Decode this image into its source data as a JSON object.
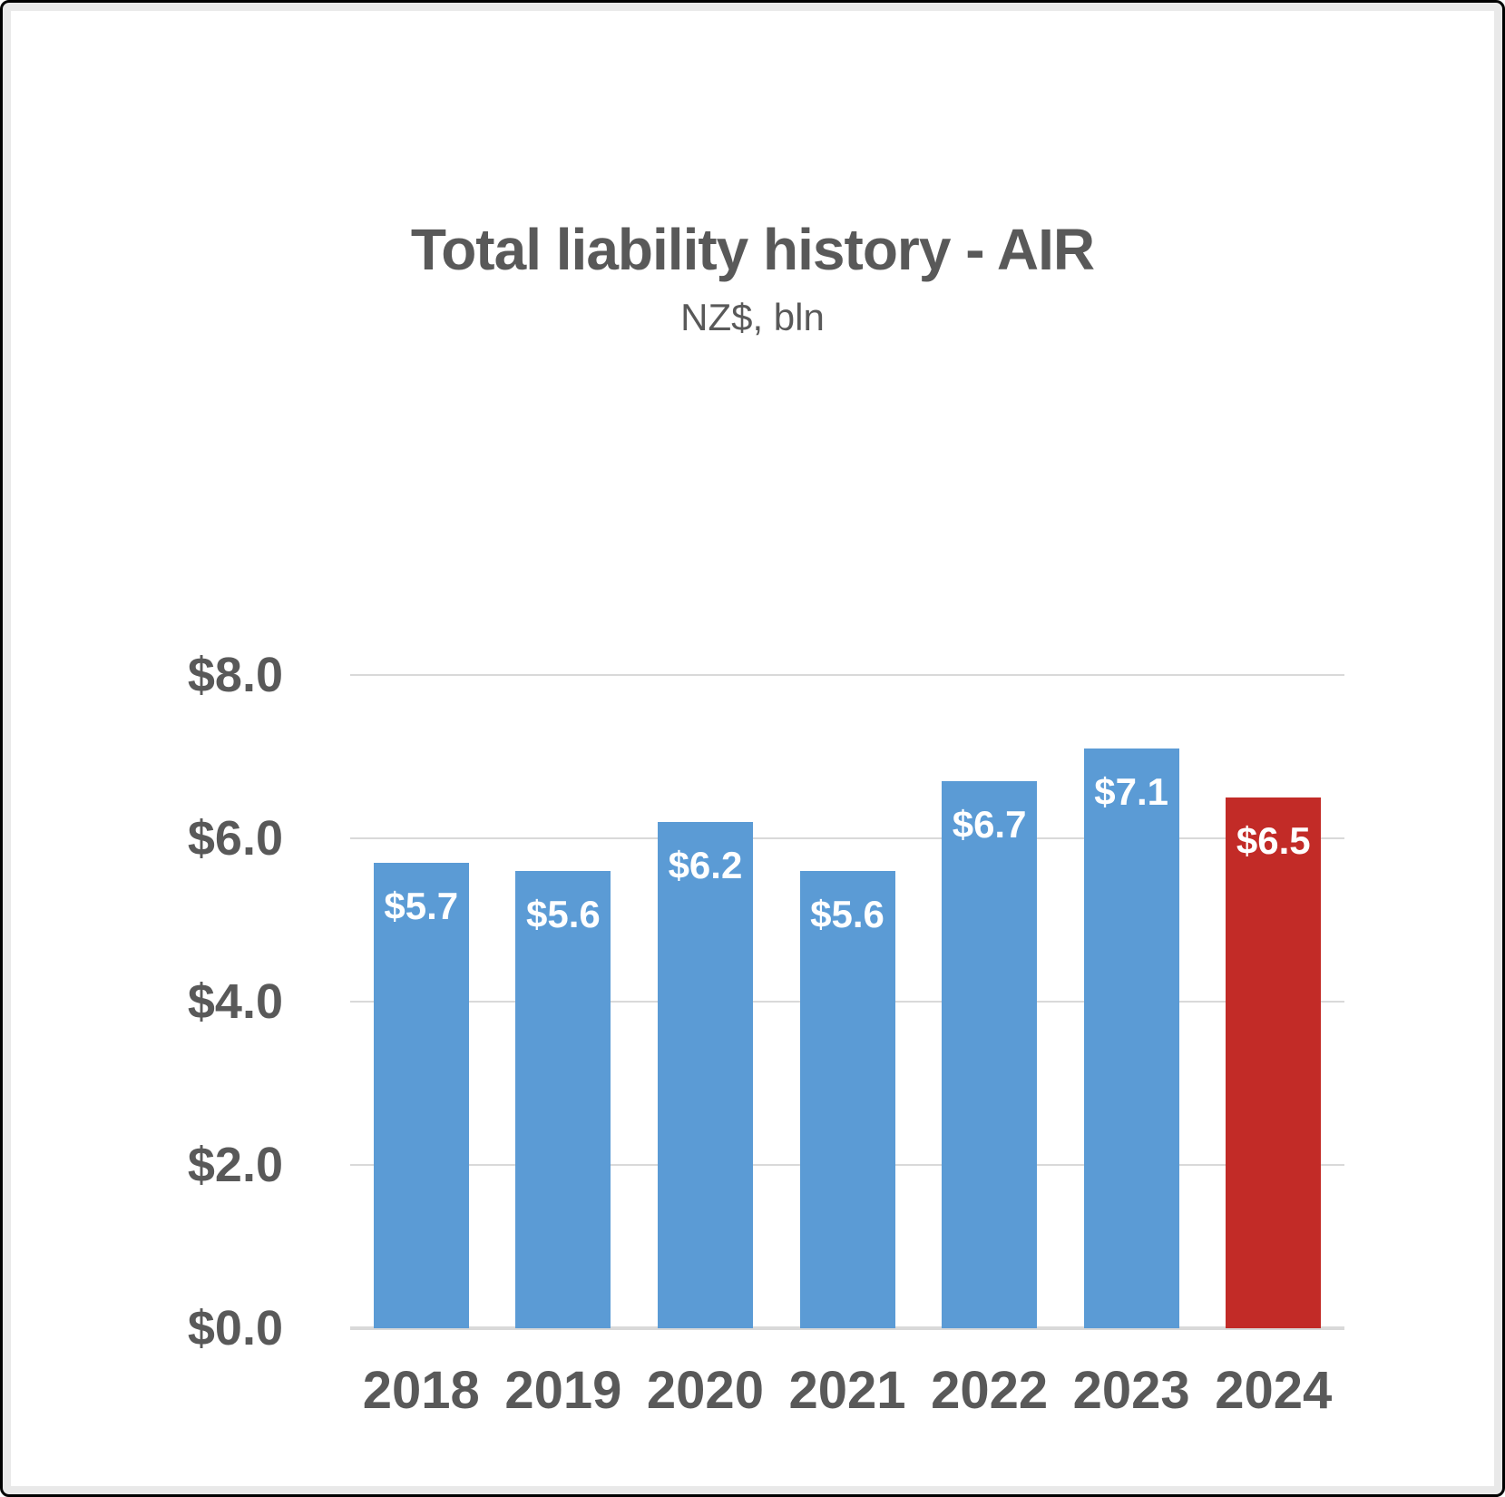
{
  "chart_data": {
    "type": "bar",
    "title": "Total liability history - AIR",
    "subtitle": "NZ$, bln",
    "categories": [
      "2018",
      "2019",
      "2020",
      "2021",
      "2022",
      "2023",
      "2024"
    ],
    "values": [
      5.7,
      5.6,
      6.2,
      5.6,
      6.7,
      7.1,
      6.5
    ],
    "data_labels": [
      "$5.7",
      "$5.6",
      "$6.2",
      "$5.6",
      "$6.7",
      "$7.1",
      "$6.5"
    ],
    "bar_colors": [
      "#5B9BD5",
      "#5B9BD5",
      "#5B9BD5",
      "#5B9BD5",
      "#5B9BD5",
      "#5B9BD5",
      "#C22B27"
    ],
    "highlight_category": "2024",
    "y_ticks": [
      {
        "value": 8,
        "label": "$8.0"
      },
      {
        "value": 6,
        "label": "$6.0"
      },
      {
        "value": 4,
        "label": "$4.0"
      },
      {
        "value": 2,
        "label": "$2.0"
      },
      {
        "value": 0,
        "label": "$0.0"
      }
    ],
    "ylim": [
      0,
      8
    ],
    "xlabel": "",
    "ylabel": "",
    "grid": true,
    "legend": false,
    "colors": {
      "series_default": "#5B9BD5",
      "series_highlight": "#C22B27",
      "text": "#595959",
      "gridline": "#D9D9D9",
      "data_label_text": "#FFFFFF",
      "background": "#FFFFFF",
      "frame_border": "#000000",
      "frame_ring": "#E9E9E9"
    }
  }
}
